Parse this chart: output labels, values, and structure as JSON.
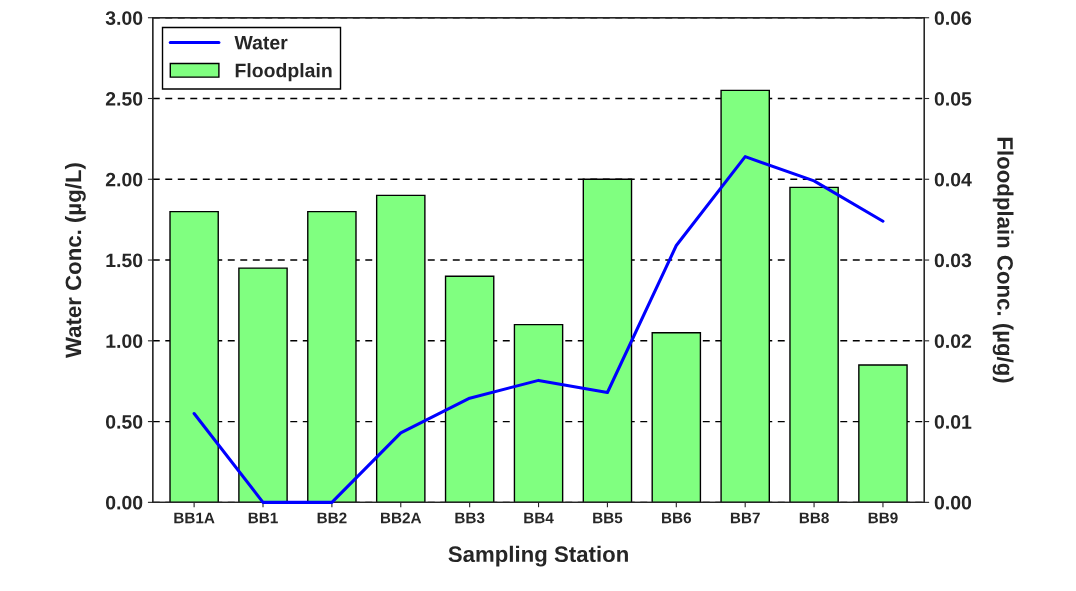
{
  "chart_data": {
    "type": "bar",
    "xlabel": "Sampling Station",
    "ylabel": "Water Conc. (µg/L)",
    "y2label": "Floodplain Conc. (µg/g)",
    "categories": [
      "BB1A",
      "BB1",
      "BB2",
      "BB2A",
      "BB3",
      "BB4",
      "BB5",
      "BB6",
      "BB7",
      "BB8",
      "BB9"
    ],
    "series": [
      {
        "name": "Water",
        "type": "line",
        "color": "#0000ff",
        "values": [
          0.55,
          0.0,
          0.0,
          0.43,
          0.645,
          0.755,
          0.68,
          1.59,
          2.14,
          1.99,
          1.74
        ]
      },
      {
        "name": "Floodplain",
        "axis": "y2",
        "color": "#80ff80",
        "values": [
          0.036,
          0.029,
          0.036,
          0.038,
          0.028,
          0.022,
          0.04,
          0.021,
          0.051,
          0.039,
          0.017
        ]
      }
    ],
    "ylim": [
      0,
      3
    ],
    "yticks": [
      {
        "value": 0,
        "label": "0.00"
      },
      {
        "value": 0.5,
        "label": "0.50"
      },
      {
        "value": 1,
        "label": "1.00"
      },
      {
        "value": 1.5,
        "label": "1.50"
      },
      {
        "value": 2,
        "label": "2.00"
      },
      {
        "value": 2.5,
        "label": "2.50"
      },
      {
        "value": 3,
        "label": "3.00"
      }
    ],
    "y2lim": [
      0,
      0.06
    ],
    "y2ticks": [
      {
        "value": 0,
        "label": "0.00"
      },
      {
        "value": 0.01,
        "label": "0.01"
      },
      {
        "value": 0.02,
        "label": "0.02"
      },
      {
        "value": 0.03,
        "label": "0.03"
      },
      {
        "value": 0.04,
        "label": "0.04"
      },
      {
        "value": 0.05,
        "label": "0.05"
      },
      {
        "value": 0.06,
        "label": "0.06"
      }
    ],
    "grid": "y",
    "legend": "top left",
    "line_style": "solid",
    "marker": "none"
  }
}
